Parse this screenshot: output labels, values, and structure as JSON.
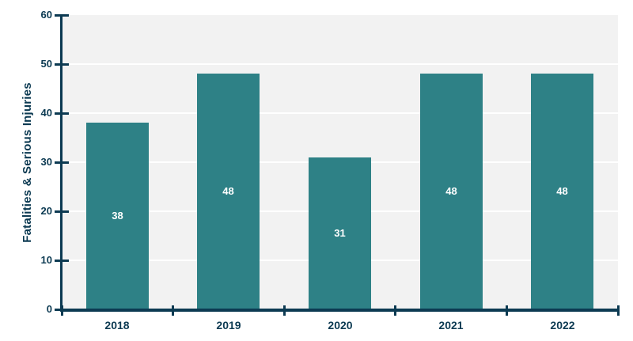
{
  "chart_data": {
    "type": "bar",
    "categories": [
      "2018",
      "2019",
      "2020",
      "2021",
      "2022"
    ],
    "values": [
      38,
      48,
      31,
      48,
      48
    ],
    "title": "",
    "xlabel": "",
    "ylabel": "Fatalities & Serious Injuries",
    "ylim": [
      0,
      60
    ],
    "yticks": [
      0,
      10,
      20,
      30,
      40,
      50,
      60
    ],
    "grid": true,
    "gridline_values": [
      10,
      20,
      30,
      40,
      50
    ],
    "legend_position": "none",
    "value_labels_inside_bars": true,
    "colors": {
      "bar": "#2e8186",
      "axis": "#0c3a52",
      "text": "#0c3a52",
      "plot_background": "#f2f2f2",
      "gridline": "#ffffff",
      "value_label": "#ffffff",
      "page_background": "#ffffff"
    }
  }
}
